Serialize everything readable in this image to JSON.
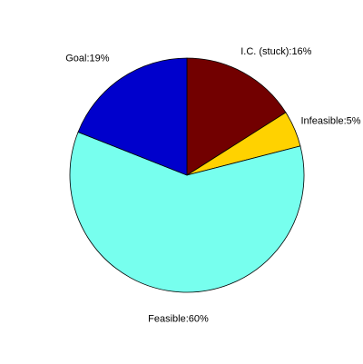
{
  "chart_data": {
    "type": "pie",
    "slices": [
      {
        "label": "I.C. (stuck):16%",
        "value": 16,
        "color": "#720000"
      },
      {
        "label": "Infeasible:5%",
        "value": 5,
        "color": "#FFD200"
      },
      {
        "label": "Feasible:60%",
        "value": 60,
        "color": "#77FFEE"
      },
      {
        "label": "Goal:19%",
        "value": 19,
        "color": "#0000CC"
      }
    ],
    "start_angle_deg": 90,
    "direction": "clockwise",
    "legend": "none"
  }
}
